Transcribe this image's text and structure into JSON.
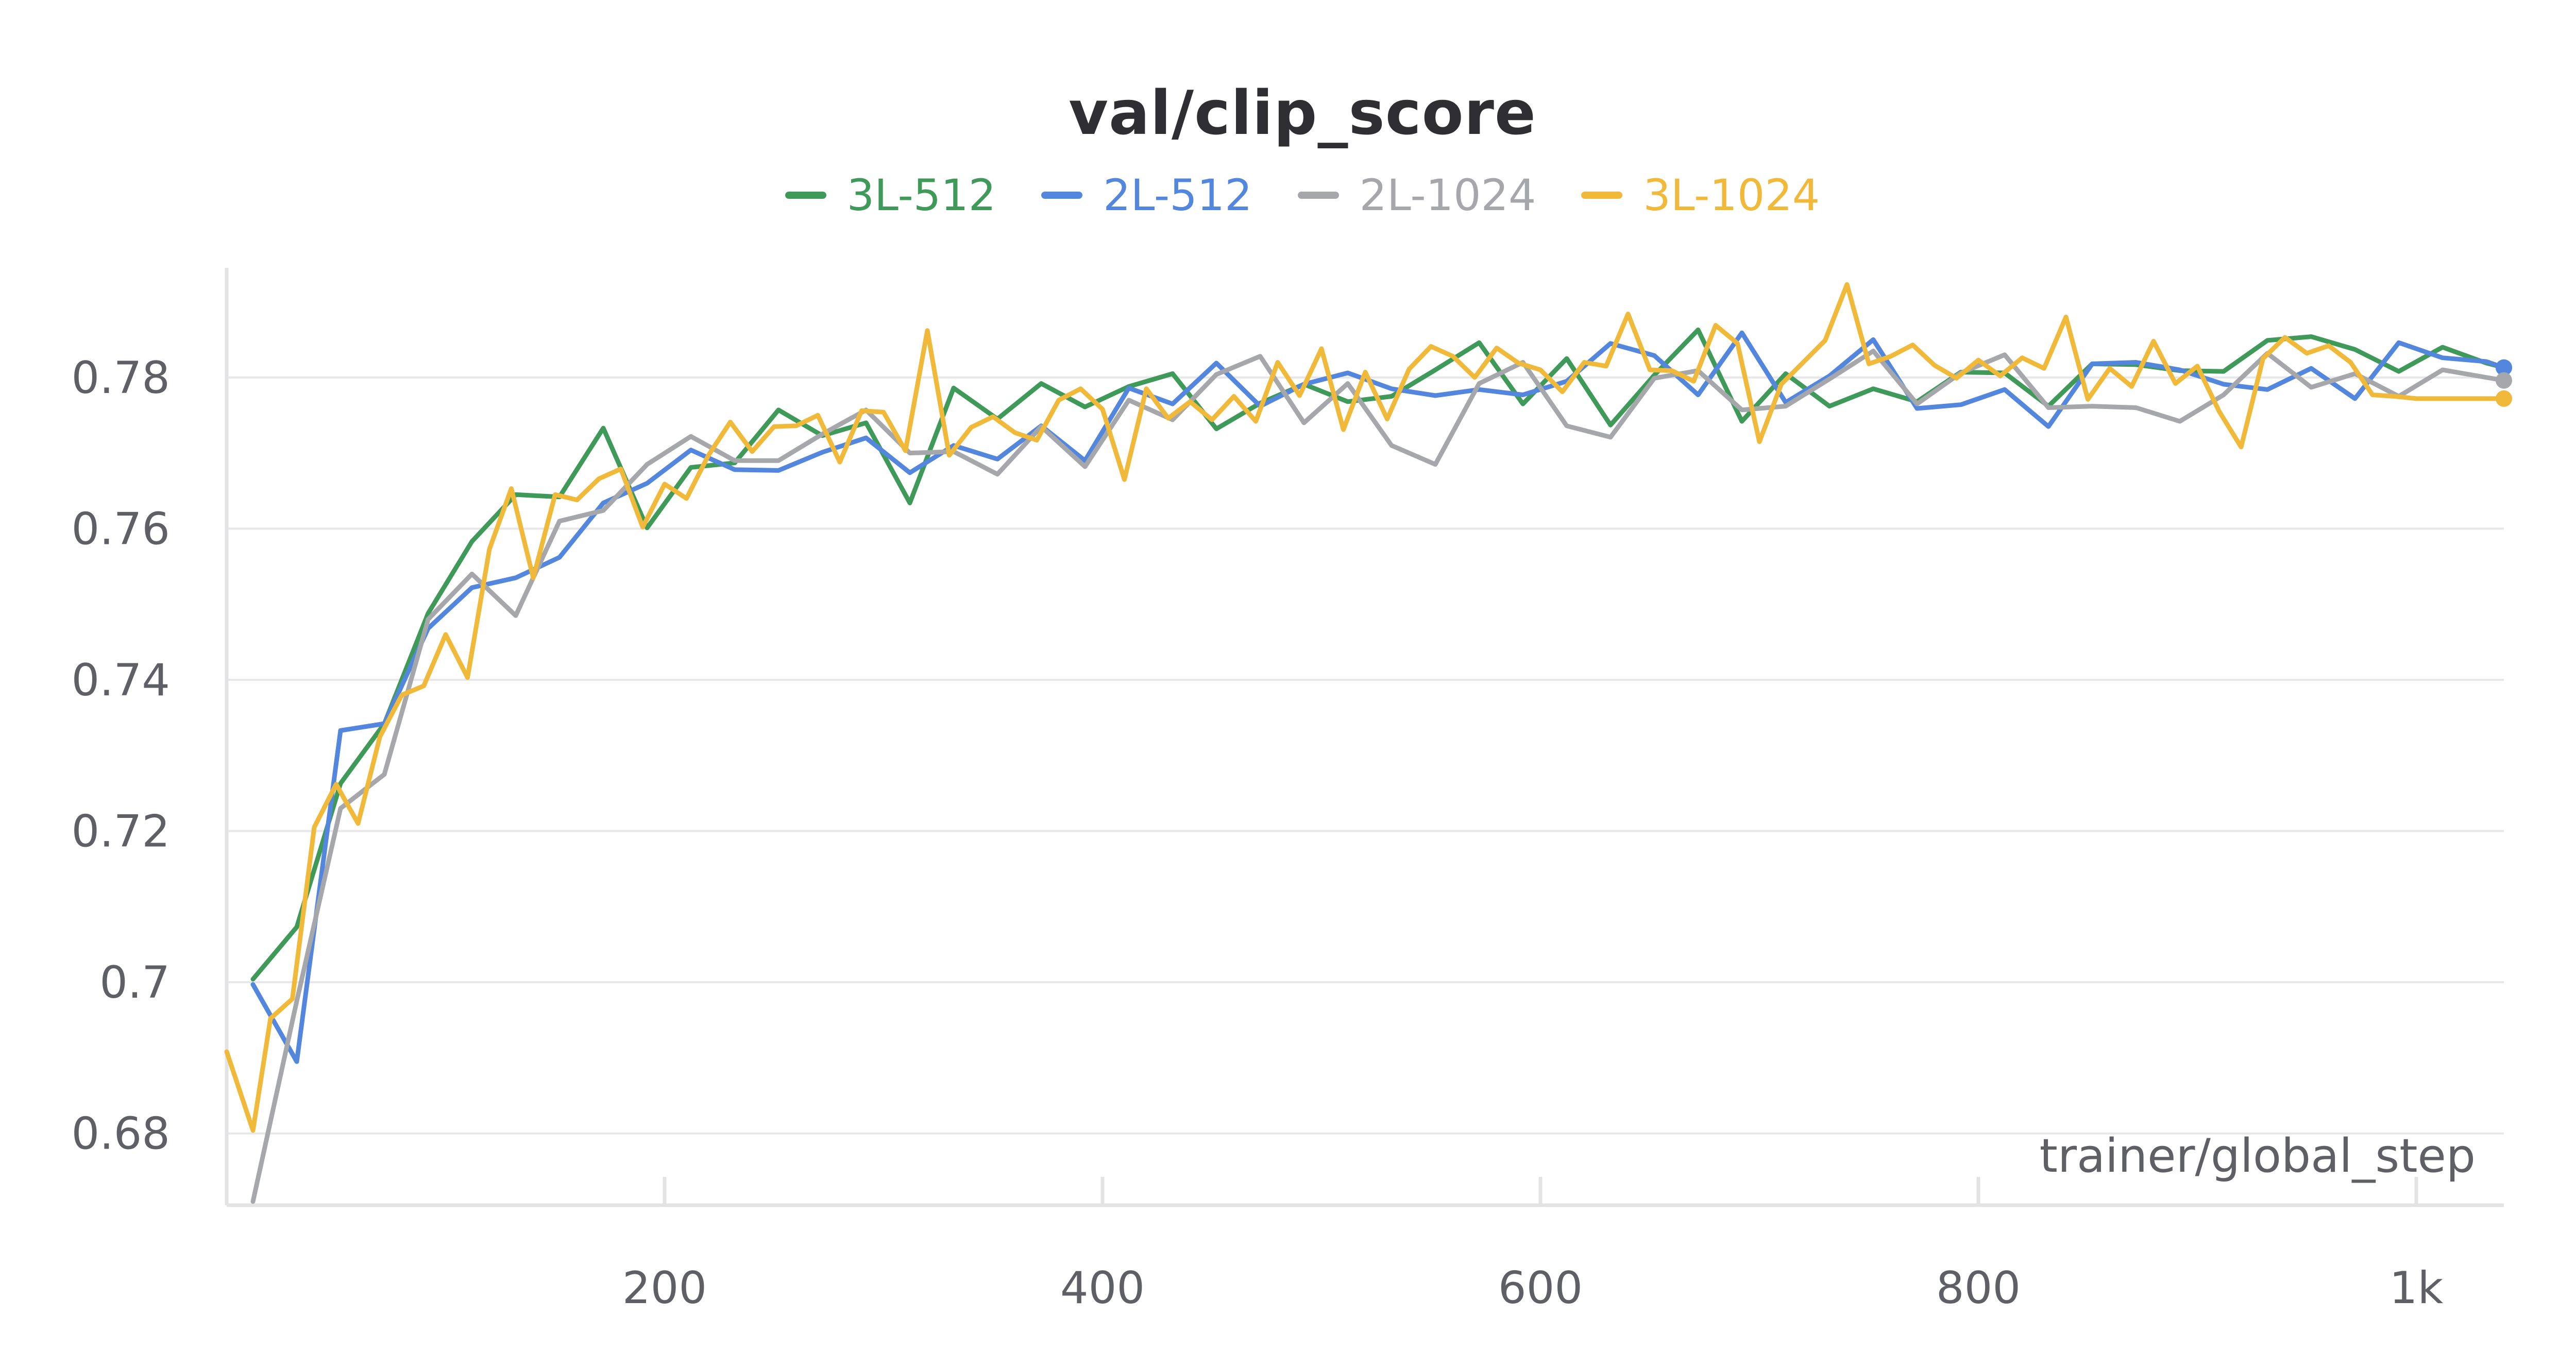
{
  "chart_data": {
    "type": "line",
    "title": "val/clip_score",
    "xlabel": "trainer/global_step",
    "ylabel": "",
    "xlim": [
      0,
      1040
    ],
    "ylim": [
      0.6705,
      0.7945
    ],
    "xticks": [
      200,
      400,
      600,
      800,
      1000
    ],
    "xtick_labels": [
      "200",
      "400",
      "600",
      "800",
      "1k"
    ],
    "yticks": [
      0.68,
      0.7,
      0.72,
      0.74,
      0.76,
      0.78
    ],
    "ytick_labels": [
      "0.68",
      "0.7",
      "0.72",
      "0.74",
      "0.76",
      "0.78"
    ],
    "grid": true,
    "legend_position": "top-center",
    "series": [
      {
        "name": "3L-512",
        "color": "#3f9a5a",
        "x": [
          12,
          32,
          52,
          72,
          92,
          112,
          132,
          152,
          172,
          192,
          212,
          232,
          252,
          272,
          292,
          312,
          332,
          352,
          372,
          392,
          412,
          432,
          452,
          472,
          492,
          512,
          532,
          552,
          572,
          592,
          612,
          632,
          652,
          672,
          692,
          712,
          732,
          752,
          772,
          792,
          812,
          832,
          852,
          872,
          892,
          912,
          932,
          952,
          972,
          992,
          1012,
          1032,
          1040
        ],
        "values": [
          0.7004,
          0.7073,
          0.7263,
          0.7342,
          0.7488,
          0.7583,
          0.7645,
          0.7642,
          0.7733,
          0.7601,
          0.7681,
          0.7687,
          0.7757,
          0.7723,
          0.774,
          0.7634,
          0.7786,
          0.7745,
          0.7792,
          0.7761,
          0.7788,
          0.7805,
          0.7732,
          0.7766,
          0.7791,
          0.7768,
          0.7775,
          0.781,
          0.7846,
          0.7765,
          0.7825,
          0.7737,
          0.7803,
          0.7863,
          0.7742,
          0.7805,
          0.7762,
          0.7785,
          0.7768,
          0.7807,
          0.7806,
          0.7762,
          0.7818,
          0.7817,
          0.7809,
          0.7808,
          0.7849,
          0.7854,
          0.7837,
          0.7808,
          0.784,
          0.7819,
          0.7813
        ]
      },
      {
        "name": "2L-512",
        "color": "#5387dd",
        "x": [
          12,
          32,
          52,
          72,
          92,
          112,
          132,
          152,
          172,
          192,
          212,
          232,
          252,
          272,
          292,
          312,
          332,
          352,
          372,
          392,
          412,
          432,
          452,
          472,
          492,
          512,
          532,
          552,
          572,
          592,
          612,
          632,
          652,
          672,
          692,
          712,
          732,
          752,
          772,
          792,
          812,
          832,
          852,
          872,
          892,
          912,
          932,
          952,
          972,
          992,
          1012,
          1032,
          1040
        ],
        "values": [
          0.6997,
          0.6895,
          0.7333,
          0.7342,
          0.7468,
          0.7522,
          0.7535,
          0.7562,
          0.7634,
          0.766,
          0.7704,
          0.7678,
          0.7677,
          0.7701,
          0.772,
          0.7674,
          0.771,
          0.7692,
          0.7736,
          0.769,
          0.7786,
          0.7765,
          0.7819,
          0.7762,
          0.7791,
          0.7806,
          0.7785,
          0.7776,
          0.7784,
          0.7777,
          0.7795,
          0.7845,
          0.7829,
          0.7777,
          0.7859,
          0.7767,
          0.7802,
          0.785,
          0.7759,
          0.7764,
          0.7784,
          0.7735,
          0.7818,
          0.782,
          0.781,
          0.7791,
          0.7784,
          0.7812,
          0.7772,
          0.7846,
          0.7826,
          0.7821,
          0.7813
        ]
      },
      {
        "name": "2L-1024",
        "color": "#a6a7ab",
        "x": [
          12,
          32,
          52,
          72,
          92,
          112,
          132,
          152,
          172,
          192,
          212,
          232,
          252,
          272,
          292,
          312,
          332,
          352,
          372,
          392,
          412,
          432,
          452,
          472,
          492,
          512,
          532,
          552,
          572,
          592,
          612,
          632,
          652,
          672,
          692,
          712,
          732,
          752,
          772,
          792,
          812,
          832,
          852,
          872,
          892,
          912,
          932,
          952,
          972,
          992,
          1012,
          1032,
          1040
        ],
        "values": [
          0.671,
          0.6975,
          0.723,
          0.7275,
          0.748,
          0.754,
          0.7485,
          0.761,
          0.7624,
          0.7685,
          0.7722,
          0.769,
          0.769,
          0.7725,
          0.7757,
          0.77,
          0.7702,
          0.7672,
          0.7735,
          0.7682,
          0.777,
          0.7744,
          0.7804,
          0.7828,
          0.774,
          0.7792,
          0.771,
          0.7685,
          0.7792,
          0.782,
          0.7736,
          0.7721,
          0.7799,
          0.7809,
          0.7757,
          0.7762,
          0.7798,
          0.7835,
          0.7765,
          0.7806,
          0.783,
          0.776,
          0.7762,
          0.776,
          0.7742,
          0.7777,
          0.7832,
          0.7787,
          0.7805,
          0.7775,
          0.781,
          0.78,
          0.7796
        ]
      },
      {
        "name": "3L-1024",
        "color": "#f0b93a",
        "x": [
          0,
          12,
          20,
          30,
          40,
          50,
          60,
          70,
          80,
          90,
          100,
          110,
          120,
          130,
          140,
          150,
          160,
          170,
          180,
          190,
          200,
          210,
          220,
          230,
          240,
          250,
          260,
          270,
          280,
          290,
          300,
          310,
          320,
          330,
          340,
          350,
          360,
          370,
          380,
          390,
          400,
          410,
          420,
          430,
          440,
          450,
          460,
          470,
          480,
          490,
          500,
          510,
          520,
          530,
          540,
          550,
          560,
          570,
          580,
          590,
          600,
          610,
          620,
          630,
          640,
          650,
          660,
          670,
          680,
          690,
          700,
          710,
          720,
          730,
          740,
          750,
          760,
          770,
          780,
          790,
          800,
          810,
          820,
          830,
          840,
          850,
          860,
          870,
          880,
          890,
          900,
          910,
          920,
          930,
          940,
          950,
          960,
          970,
          980,
          990,
          1000,
          1010,
          1020,
          1030,
          1040
        ],
        "values": [
          0.6908,
          0.6804,
          0.6952,
          0.6978,
          0.7205,
          0.7262,
          0.721,
          0.7325,
          0.738,
          0.7392,
          0.746,
          0.7403,
          0.7573,
          0.7653,
          0.7535,
          0.7645,
          0.7638,
          0.7666,
          0.7679,
          0.7602,
          0.7659,
          0.764,
          0.7697,
          0.7741,
          0.7702,
          0.7735,
          0.7736,
          0.775,
          0.7688,
          0.7756,
          0.7754,
          0.7703,
          0.7862,
          0.7697,
          0.7734,
          0.7748,
          0.7727,
          0.7717,
          0.777,
          0.7785,
          0.7758,
          0.7665,
          0.7785,
          0.7746,
          0.7768,
          0.7744,
          0.7775,
          0.7742,
          0.782,
          0.7776,
          0.7838,
          0.7731,
          0.7807,
          0.7745,
          0.7811,
          0.7841,
          0.7828,
          0.78,
          0.7839,
          0.7819,
          0.781,
          0.7781,
          0.782,
          0.7815,
          0.7884,
          0.781,
          0.7809,
          0.7795,
          0.7869,
          0.7845,
          0.7715,
          0.7791,
          0.782,
          0.7849,
          0.7923,
          0.7818,
          0.7828,
          0.7843,
          0.7816,
          0.7799,
          0.7823,
          0.7802,
          0.7826,
          0.7812,
          0.788,
          0.7771,
          0.7812,
          0.7788,
          0.7848,
          0.7792,
          0.7815,
          0.7755,
          0.7708,
          0.7825,
          0.7853,
          0.7832,
          0.7842,
          0.782,
          0.7777,
          0.7775,
          0.7772,
          0.7772,
          0.7772,
          0.7772,
          0.7772
        ]
      }
    ]
  }
}
